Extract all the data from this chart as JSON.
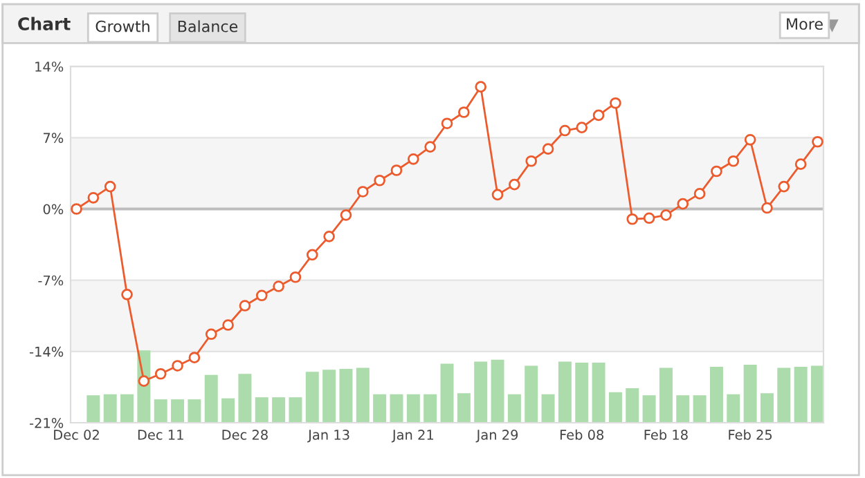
{
  "chart_data": {
    "type": "line",
    "title": "Chart",
    "annotations": [
      "Growth",
      "Balance",
      "More"
    ],
    "categories": [
      "Dec 02",
      null,
      null,
      null,
      null,
      "Dec 11",
      null,
      null,
      null,
      null,
      "Dec 28",
      null,
      null,
      null,
      null,
      "Jan 13",
      null,
      null,
      null,
      null,
      "Jan 21",
      null,
      null,
      null,
      null,
      "Jan 29",
      null,
      null,
      null,
      null,
      "Feb 08",
      null,
      null,
      null,
      null,
      "Feb 18",
      null,
      null,
      null,
      null,
      "Feb 25",
      null,
      null,
      null,
      null
    ],
    "series": [
      {
        "type": "bar",
        "color": "#acdcab",
        "base": [
          null,
          -21,
          -21,
          -21,
          -21,
          -21,
          -21,
          -21,
          -21,
          -21,
          -21,
          -21,
          -21,
          -21,
          -21,
          -21,
          -21,
          -21,
          -21,
          -21,
          -21,
          -21,
          -21,
          -21,
          -21,
          -21,
          -21,
          -21,
          -21,
          -21,
          -21,
          -21,
          -21,
          -21,
          -21,
          -21,
          -21,
          -21,
          -21,
          -21,
          -21,
          -21,
          -21,
          -21,
          -21
        ],
        "values": [
          null,
          2.7,
          2.8,
          2.8,
          7.1,
          2.3,
          2.3,
          2.3,
          4.7,
          2.4,
          4.8,
          2.5,
          2.5,
          2.5,
          5.0,
          5.2,
          5.3,
          5.4,
          2.8,
          2.8,
          2.8,
          2.8,
          5.8,
          2.9,
          6.0,
          6.2,
          2.8,
          5.6,
          2.8,
          6.0,
          5.9,
          5.9,
          3.0,
          3.4,
          2.7,
          5.4,
          2.7,
          2.7,
          5.5,
          2.8,
          5.7,
          2.9,
          5.4,
          5.5,
          5.6
        ]
      },
      {
        "type": "line",
        "color": "#ec5b2d",
        "marker": "circle",
        "values": [
          0,
          1.1,
          2.2,
          -8.4,
          -16.9,
          -16.2,
          -15.4,
          -14.6,
          -12.3,
          -11.4,
          -9.5,
          -8.5,
          -7.6,
          -6.7,
          -4.5,
          -2.7,
          -0.6,
          1.7,
          2.8,
          3.8,
          4.9,
          6.1,
          8.4,
          9.5,
          12.0,
          1.4,
          2.4,
          4.7,
          5.9,
          7.7,
          8.0,
          9.2,
          10.4,
          -1.0,
          -0.9,
          -0.6,
          0.5,
          1.5,
          3.7,
          4.7,
          6.8,
          0.1,
          2.2,
          4.4,
          6.6
        ]
      }
    ],
    "ylim": [
      -21,
      14
    ],
    "yticks": [
      {
        "value": -21,
        "label": "-21%"
      },
      {
        "value": -14,
        "label": "-14%"
      },
      {
        "value": -7,
        "label": "-7%"
      },
      {
        "value": 0,
        "label": "0%"
      },
      {
        "value": 7,
        "label": "7%"
      },
      {
        "value": 14,
        "label": "14%"
      }
    ],
    "grid": "y",
    "bands": [
      {
        "axis": "y",
        "from": 0,
        "to": 7,
        "color": "#f5f5f5"
      },
      {
        "axis": "y",
        "from": -14,
        "to": -7,
        "color": "#f5f5f5"
      }
    ],
    "ref_lines": [
      {
        "axis": "y",
        "value": 0,
        "color": "#bdbdbd"
      }
    ],
    "legend": false
  }
}
